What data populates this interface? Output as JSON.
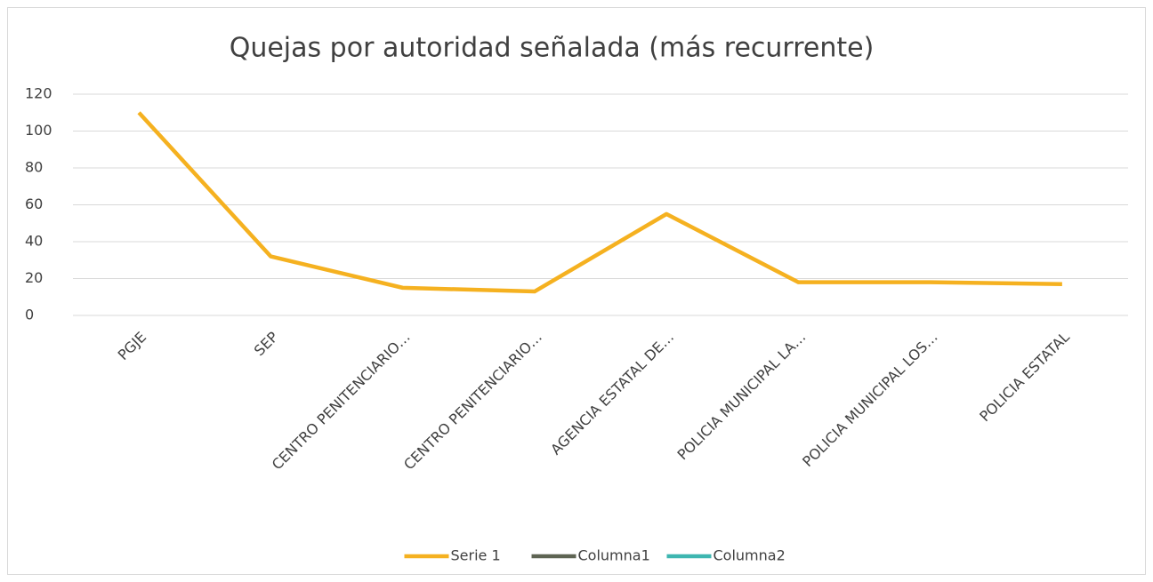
{
  "chart_data": {
    "type": "line",
    "title": "Quejas por autoridad señalada (más recurrente)",
    "categories": [
      "PGJE",
      "SEP",
      "CENTRO PENITENCIARIO…",
      "CENTRO PENITENCIARIO…",
      "AGENCIA ESTATAL DE…",
      "POLICIA MUNICIPAL LA…",
      "POLICIA MUNICIPAL LOS…",
      "POLICIA ESTATAL"
    ],
    "series": [
      {
        "name": "Serie 1",
        "color": "#f5b120",
        "values": [
          110,
          32,
          15,
          13,
          55,
          18,
          18,
          17
        ]
      },
      {
        "name": "Columna1",
        "color": "#5e6453",
        "values": [
          null,
          null,
          null,
          null,
          null,
          null,
          null,
          null
        ]
      },
      {
        "name": "Columna2",
        "color": "#3eb6b0",
        "values": [
          null,
          null,
          null,
          null,
          null,
          null,
          null,
          null
        ]
      }
    ],
    "ylim": [
      0,
      120
    ],
    "yticks": [
      0,
      20,
      40,
      60,
      80,
      100,
      120
    ],
    "grid": true,
    "legend": "bottom"
  }
}
